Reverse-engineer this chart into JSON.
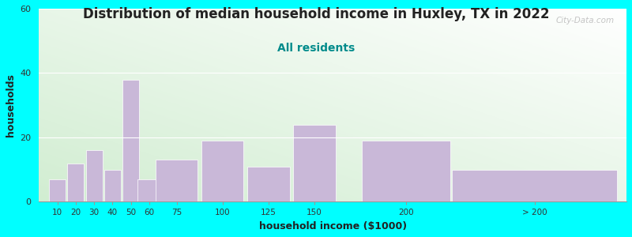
{
  "title": "Distribution of median household income in Huxley, TX in 2022",
  "subtitle": "All residents",
  "xlabel": "household income ($1000)",
  "ylabel": "households",
  "background_color": "#00FFFF",
  "bar_color": "#C9B8D8",
  "title_fontsize": 12,
  "subtitle_fontsize": 10,
  "subtitle_color": "#008B8B",
  "xlabel_fontsize": 9,
  "ylabel_fontsize": 9,
  "ylim": [
    0,
    60
  ],
  "yticks": [
    0,
    20,
    40,
    60
  ],
  "categories": [
    "10",
    "20",
    "30",
    "40",
    "50",
    "60",
    "75",
    "100",
    "125",
    "150",
    "200",
    "> 200"
  ],
  "values": [
    7,
    12,
    16,
    10,
    38,
    7,
    13,
    19,
    11,
    24,
    19,
    10
  ],
  "x_centers": [
    10,
    20,
    30,
    40,
    50,
    60,
    75,
    100,
    125,
    150,
    200,
    270
  ],
  "bar_widths": [
    9,
    9,
    9,
    9,
    9,
    13,
    23,
    23,
    23,
    23,
    48,
    90
  ],
  "watermark": "City-Data.com"
}
